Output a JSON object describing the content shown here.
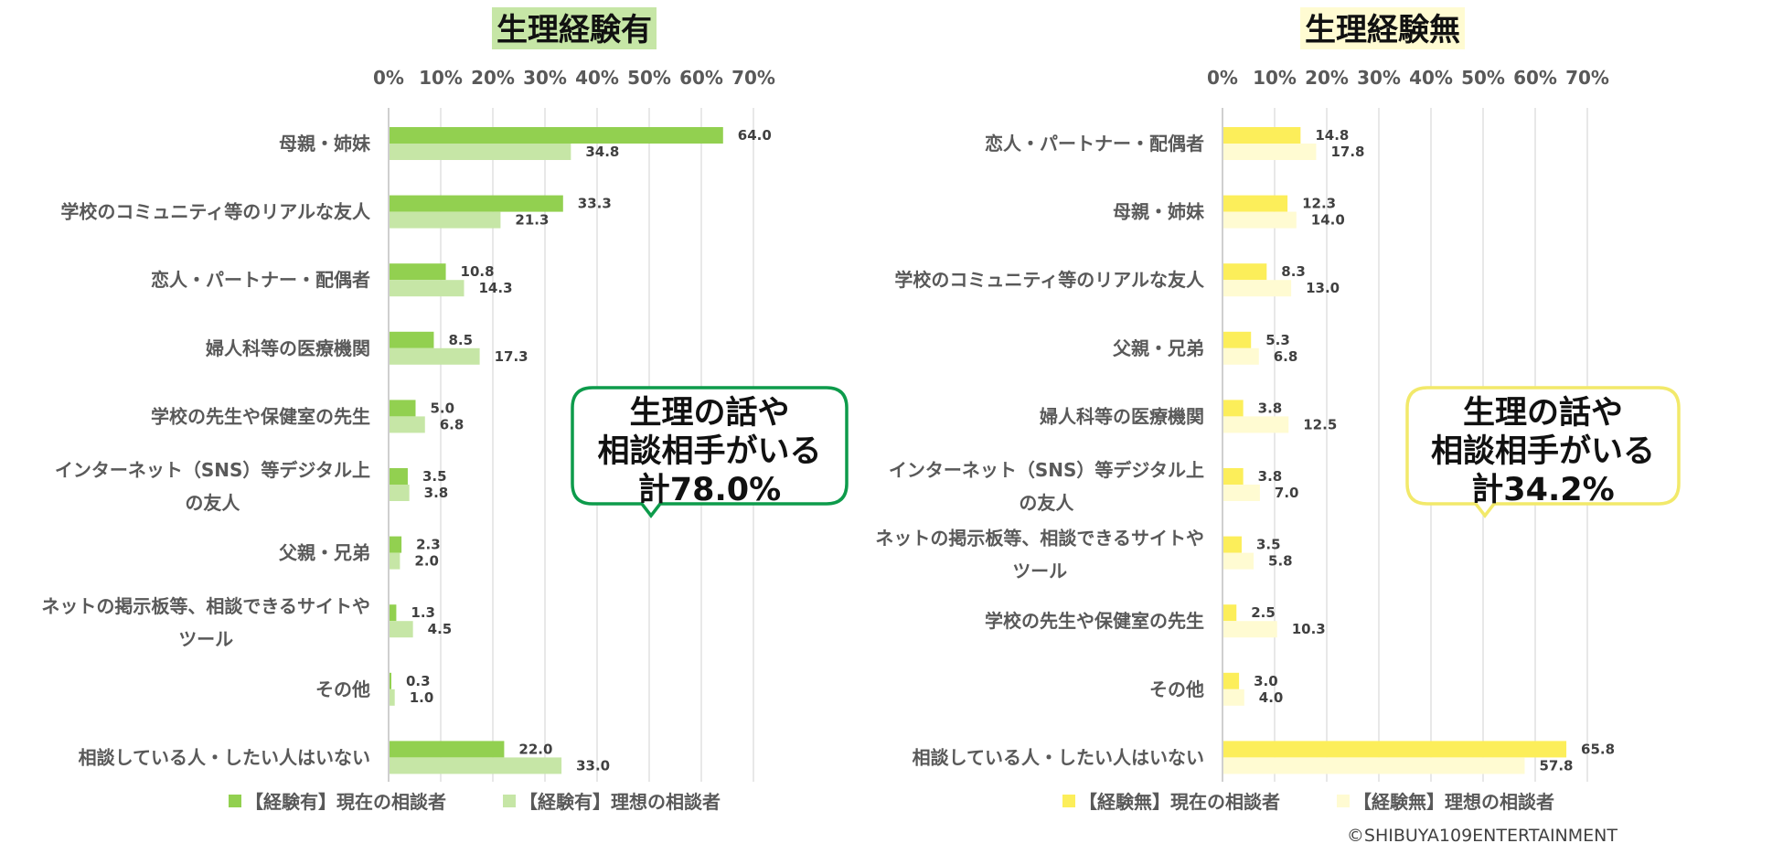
{
  "colors": {
    "left_current": "#92d050",
    "left_ideal": "#c6e6a6",
    "right_current": "#fcee5a",
    "right_ideal": "#fffbd2",
    "left_title_bg": "#c6e6a6",
    "right_title_bg": "#fffbd2",
    "left_callout_border": "#0d9b4b",
    "right_callout_border": "#f2e96a",
    "grid": "#d9d9d9",
    "axis": "#bfbfbf",
    "text": "#595959"
  },
  "copyright": "©SHIBUYA109ENTERTAINMENT",
  "chart_data": [
    {
      "type": "bar",
      "orientation": "horizontal",
      "title": "生理経験有",
      "xlim": [
        0,
        70
      ],
      "xticks": [
        "0%",
        "10%",
        "20%",
        "30%",
        "40%",
        "50%",
        "60%",
        "70%"
      ],
      "categories": [
        "母親・姉妹",
        "学校のコミュニティ等のリアルな友人",
        "恋人・パートナー・配偶者",
        "婦人科等の医療機関",
        "学校の先生や保健室の先生",
        "インターネット（SNS）等デジタル上|の友人",
        "父親・兄弟",
        "ネットの掲示板等、相談できるサイトや|ツール",
        "その他",
        "相談している人・したい人はいない"
      ],
      "series": [
        {
          "name": "【経験有】現在の相談者",
          "values": [
            64.0,
            33.3,
            10.8,
            8.5,
            5.0,
            3.5,
            2.3,
            1.3,
            0.3,
            22.0
          ],
          "labels": [
            "64.0",
            "33.3",
            "10.8",
            "8.5",
            "5.0",
            "3.5",
            "2.3",
            "1.3",
            "0.3",
            "22.0"
          ]
        },
        {
          "name": "【経験有】理想の相談者",
          "values": [
            34.8,
            21.3,
            14.3,
            17.3,
            6.8,
            3.8,
            2.0,
            4.5,
            1.0,
            33.0
          ],
          "labels": [
            "34.8",
            "21.3",
            "14.3",
            "17.3",
            "6.8",
            "3.8",
            "2.0",
            "4.5",
            "1.0",
            "33.0"
          ]
        }
      ],
      "annotation": [
        "生理の話や",
        "相談相手がいる",
        "計78.0%"
      ]
    },
    {
      "type": "bar",
      "orientation": "horizontal",
      "title": "生理経験無",
      "xlim": [
        0,
        70
      ],
      "xticks": [
        "0%",
        "10%",
        "20%",
        "30%",
        "40%",
        "50%",
        "60%",
        "70%"
      ],
      "categories": [
        "恋人・パートナー・配偶者",
        "母親・姉妹",
        "学校のコミュニティ等のリアルな友人",
        "父親・兄弟",
        "婦人科等の医療機関",
        "インターネット（SNS）等デジタル上|の友人",
        "ネットの掲示板等、相談できるサイトや|ツール",
        "学校の先生や保健室の先生",
        "その他",
        "相談している人・したい人はいない"
      ],
      "series": [
        {
          "name": "【経験無】現在の相談者",
          "values": [
            14.8,
            12.3,
            8.3,
            5.3,
            3.8,
            3.8,
            3.5,
            2.5,
            3.0,
            65.8
          ],
          "labels": [
            "14.8",
            "12.3",
            "8.3",
            "5.3",
            "3.8",
            "3.8",
            "3.5",
            "2.5",
            "3.0",
            "65.8"
          ]
        },
        {
          "name": "【経験無】理想の相談者",
          "values": [
            17.8,
            14.0,
            13.0,
            6.8,
            12.5,
            7.0,
            5.8,
            10.3,
            4.0,
            57.8
          ],
          "labels": [
            "17.8",
            "14.0",
            "13.0",
            "6.8",
            "12.5",
            "7.0",
            "5.8",
            "10.3",
            "4.0",
            "57.8"
          ]
        }
      ],
      "annotation": [
        "生理の話や",
        "相談相手がいる",
        "計34.2%"
      ]
    }
  ]
}
